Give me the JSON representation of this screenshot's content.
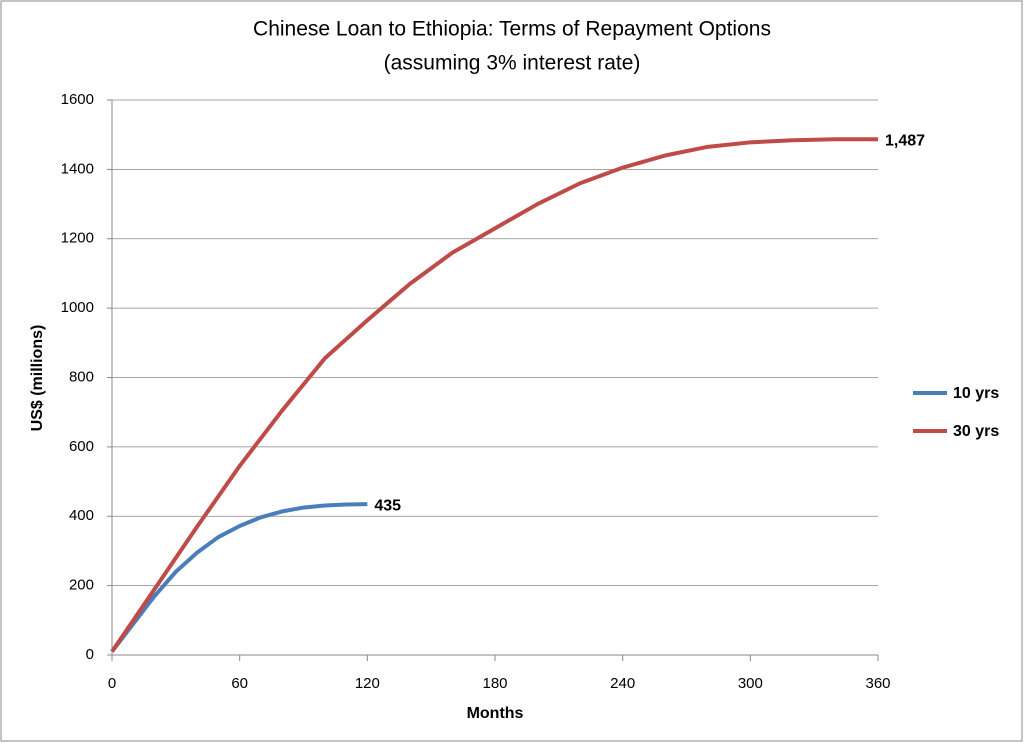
{
  "chart_data": {
    "type": "line",
    "title": "Chinese Loan to Ethiopia:  Terms of Repayment Options",
    "subtitle": "(assuming 3% interest rate)",
    "x_label": "Months",
    "y_label": "US$ (millions)",
    "xlim": [
      0,
      360
    ],
    "xticks": [
      0,
      60,
      120,
      180,
      240,
      300,
      360
    ],
    "ylim": [
      0,
      1600
    ],
    "yticks": [
      0,
      200,
      400,
      600,
      800,
      1000,
      1200,
      1400,
      1600
    ],
    "grid": true,
    "legend": "right",
    "series": [
      {
        "name": "10 yrs",
        "color": "#4a7ebb",
        "x": [
          0,
          10,
          20,
          30,
          40,
          50,
          60,
          70,
          80,
          90,
          100,
          110,
          120
        ],
        "values": [
          10,
          90,
          170,
          240,
          295,
          340,
          372,
          397,
          414,
          425,
          431,
          434,
          435
        ],
        "value_labels": [
          null,
          null,
          null,
          null,
          null,
          null,
          null,
          null,
          null,
          null,
          null,
          null,
          "435"
        ]
      },
      {
        "name": "30 yrs",
        "color": "#be4b48",
        "x": [
          0,
          20,
          40,
          60,
          80,
          100,
          120,
          140,
          160,
          180,
          200,
          220,
          240,
          260,
          280,
          300,
          320,
          340,
          360
        ],
        "values": [
          10,
          190,
          370,
          545,
          705,
          855,
          965,
          1070,
          1160,
          1230,
          1300,
          1360,
          1405,
          1440,
          1465,
          1478,
          1484,
          1487,
          1487
        ],
        "value_labels": [
          null,
          null,
          null,
          null,
          null,
          null,
          null,
          null,
          null,
          null,
          null,
          null,
          null,
          null,
          null,
          null,
          null,
          null,
          "1,487"
        ]
      }
    ]
  }
}
